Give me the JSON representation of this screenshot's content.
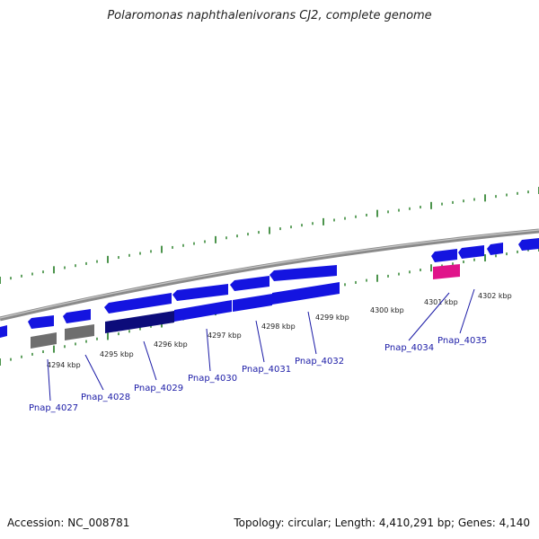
{
  "title": "Polaromonas naphthalenivorans CJ2, complete genome",
  "accession": "Accession: NC_008781",
  "topology": "Topology: circular; Length: 4,410,291 bp; Genes: 4,140",
  "colors": {
    "backbone": "#8a8a8a",
    "gene_forward": "#1414e0",
    "gene_selected": "#0c0c7a",
    "gene_grey": "#6e6e6e",
    "gene_pink": "#e0148a",
    "tick": "#1f7a1f",
    "label": "#1a1aa6"
  },
  "kbp_labels": [
    "4294 kbp",
    "4295 kbp",
    "4296 kbp",
    "4297 kbp",
    "4298 kbp",
    "4299 kbp",
    "4300 kbp",
    "4301 kbp",
    "4302 kbp"
  ],
  "gene_labels": [
    "Pnap_4027",
    "Pnap_4028",
    "Pnap_4029",
    "Pnap_4030",
    "Pnap_4031",
    "Pnap_4032",
    "Pnap_4034",
    "Pnap_4035"
  ]
}
